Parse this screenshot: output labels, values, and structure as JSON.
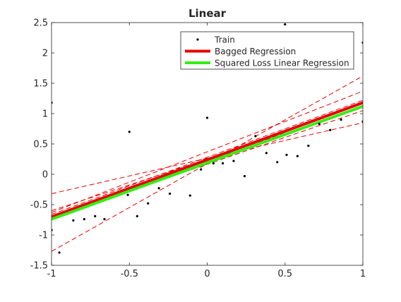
{
  "chart_data": {
    "type": "line",
    "title": "Linear",
    "xlabel": "",
    "ylabel": "",
    "xlim": [
      -1,
      1
    ],
    "ylim": [
      -1.5,
      2.5
    ],
    "xticks": [
      -1,
      -0.5,
      0,
      0.5,
      1
    ],
    "xtick_labels": [
      "-1",
      "-0.5",
      "0",
      "0.5",
      "1"
    ],
    "yticks": [
      -1.5,
      -1,
      -0.5,
      0,
      0.5,
      1,
      1.5,
      2,
      2.5
    ],
    "ytick_labels": [
      "-1.5",
      "-1",
      "-0.5",
      "0",
      "0.5",
      "1",
      "1.5",
      "2",
      "2.5"
    ],
    "grid": false,
    "legend_position": "top-right",
    "series": [
      {
        "name": "Train",
        "style": "points",
        "color": "#000000",
        "x": [
          -1.0,
          -1.0,
          -0.95,
          -0.86,
          -0.79,
          -0.72,
          -0.66,
          -0.51,
          -0.5,
          -0.45,
          -0.38,
          -0.31,
          -0.24,
          -0.11,
          -0.04,
          0.0,
          0.04,
          0.1,
          0.17,
          0.24,
          0.31,
          0.38,
          0.45,
          0.5,
          0.51,
          0.58,
          0.65,
          0.72,
          0.79,
          0.86,
          1.0,
          1.0
        ],
        "y": [
          1.18,
          -0.92,
          -1.29,
          -0.76,
          -0.74,
          -0.69,
          -0.74,
          -0.34,
          0.7,
          -0.69,
          -0.48,
          -0.23,
          -0.32,
          -0.35,
          0.08,
          0.93,
          0.18,
          0.18,
          0.22,
          -0.03,
          0.63,
          0.35,
          0.2,
          2.47,
          0.32,
          0.3,
          0.47,
          0.83,
          0.73,
          0.9,
          0.87,
          2.17
        ]
      },
      {
        "name": "Bagged Regression",
        "style": "line",
        "color": "#e60000",
        "x": [
          -1,
          1
        ],
        "y": [
          -0.7,
          1.18
        ]
      },
      {
        "name": "Squared Loss Linear Regression",
        "style": "line",
        "color": "#33ee11",
        "x": [
          -1,
          1
        ],
        "y": [
          -0.74,
          1.12
        ]
      },
      {
        "style": "dashed",
        "color": "#e60000",
        "x": [
          -1,
          1
        ],
        "y": [
          -0.32,
          0.85
        ]
      },
      {
        "style": "dashed",
        "color": "#e60000",
        "x": [
          -1,
          1
        ],
        "y": [
          -0.63,
          1.37
        ]
      },
      {
        "style": "dashed",
        "color": "#e60000",
        "x": [
          -1,
          1
        ],
        "y": [
          -1.27,
          1.62
        ]
      },
      {
        "style": "dashed",
        "color": "#e60000",
        "x": [
          -1,
          1
        ],
        "y": [
          -0.66,
          1.22
        ]
      },
      {
        "style": "dashed",
        "color": "#e60000",
        "x": [
          -1,
          1
        ],
        "y": [
          -0.6,
          1.1
        ]
      },
      {
        "style": "dashed",
        "color": "#e60000",
        "x": [
          -1,
          1
        ],
        "y": [
          -0.72,
          1.05
        ]
      }
    ]
  }
}
